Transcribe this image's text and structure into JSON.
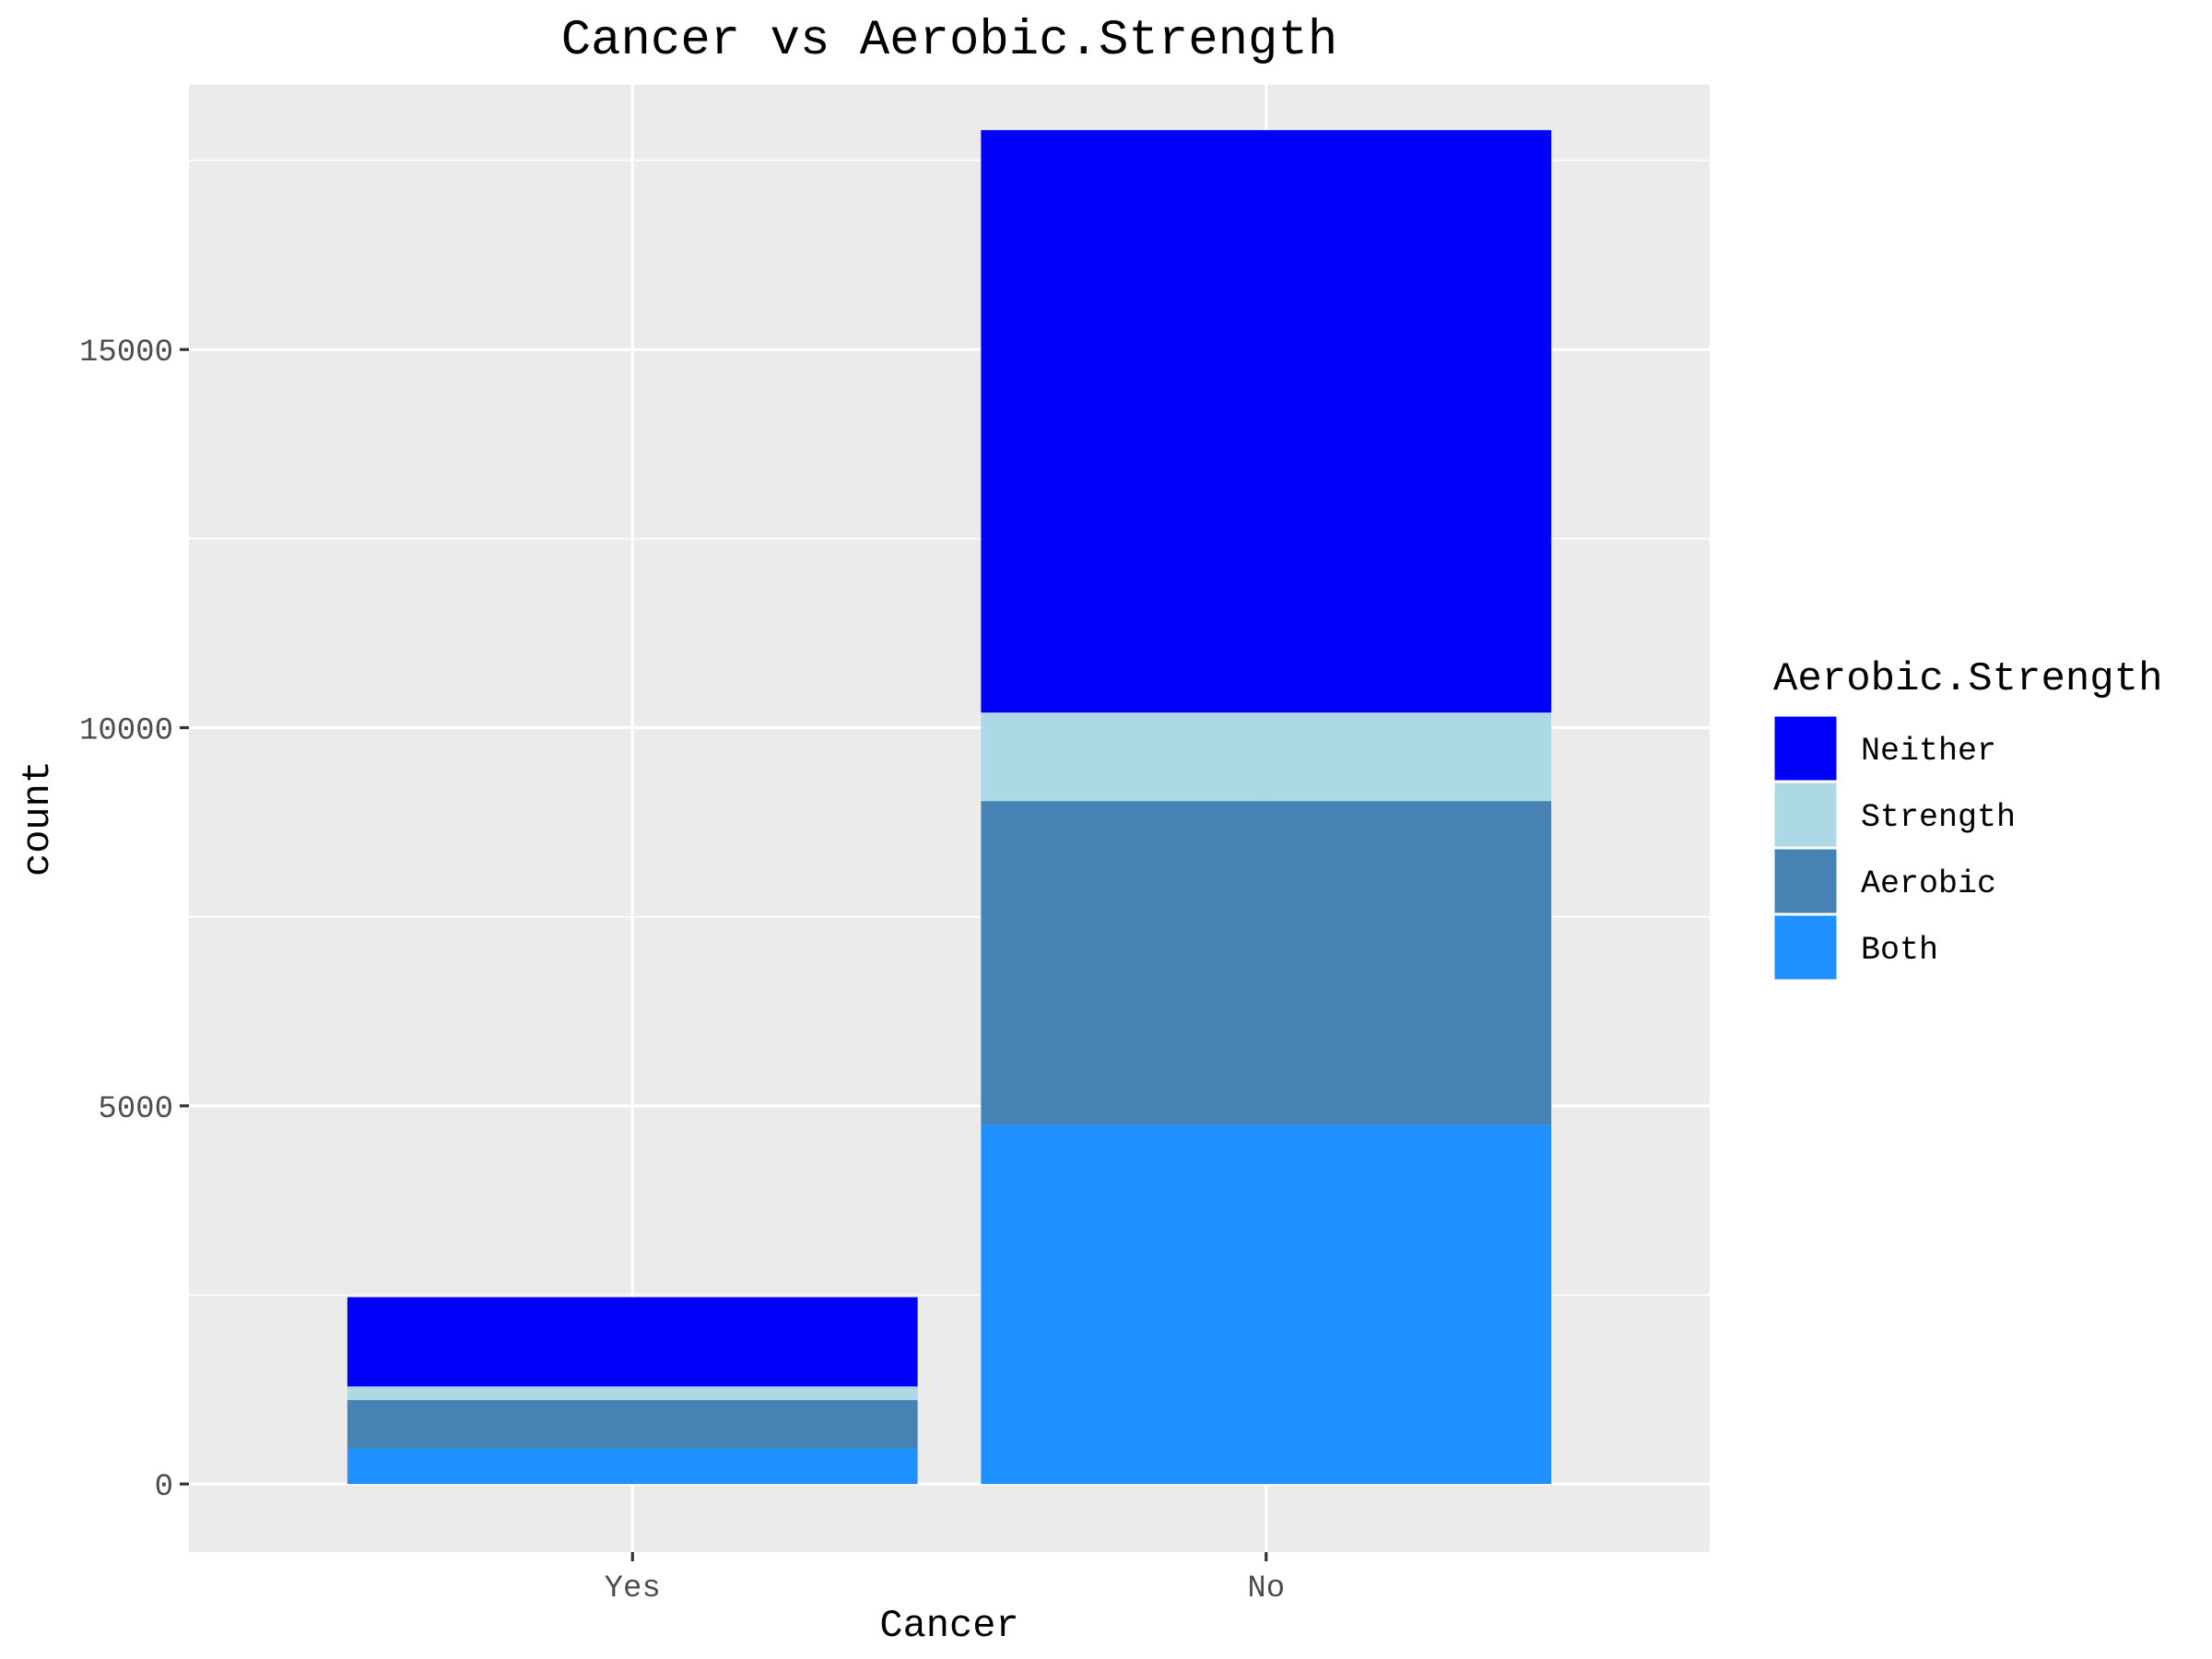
{
  "chart_data": {
    "type": "bar",
    "stacked": true,
    "title": "Cancer vs Aerobic.Strength",
    "xlabel": "Cancer",
    "ylabel": "count",
    "categories": [
      "Yes",
      "No"
    ],
    "ylim": [
      -900,
      18500
    ],
    "yticks": [
      0,
      5000,
      10000,
      15000
    ],
    "ytick_labels": [
      "0",
      "5000",
      "10000",
      "15000"
    ],
    "grid": true,
    "legend": {
      "title": "Aerobic.Strength",
      "placement": "right"
    },
    "series": [
      {
        "name": "Both",
        "color": "#1E90FF",
        "values": [
          470,
          4750
        ]
      },
      {
        "name": "Aerobic",
        "color": "#4682B4",
        "values": [
          640,
          4280
        ]
      },
      {
        "name": "Strength",
        "color": "#ADD8E6",
        "values": [
          180,
          1170
        ]
      },
      {
        "name": "Neither",
        "color": "#0000FF",
        "values": [
          1180,
          7700
        ]
      }
    ],
    "legend_order": [
      "Neither",
      "Strength",
      "Aerobic",
      "Both"
    ],
    "panel_color": "#EBEBEB",
    "gridline_color": "#FFFFFF"
  }
}
